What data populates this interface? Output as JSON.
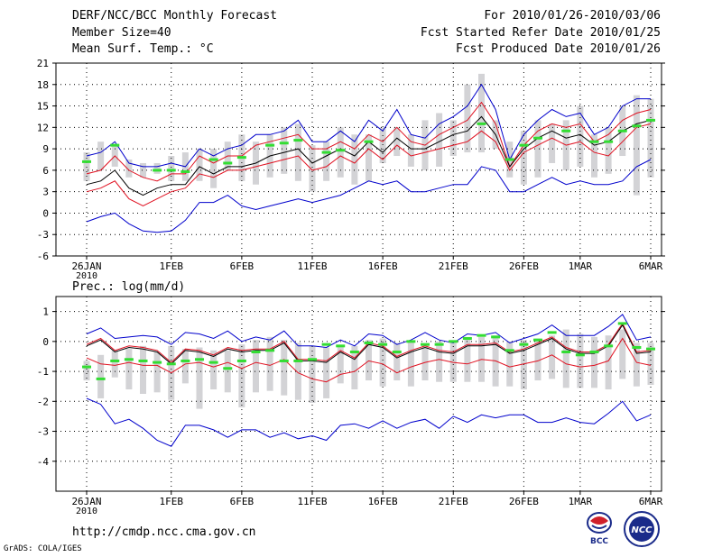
{
  "header": {
    "line1_left": "DERF/NCC/BCC Monthly Forecast",
    "line2_left": "Member Size=40",
    "line3_left": "Mean Surf. Temp.: °C",
    "line1_right": "For 2010/01/26-2010/03/06",
    "line2_right": "Fcst Started Refer Date 2010/01/25",
    "line3_right": "Fcst Produced Date 2010/01/26"
  },
  "footer": {
    "url": "http://cmdp.ncc.cma.gov.cn",
    "credit": "GrADS: COLA/IGES",
    "logo_left_text": "BCC",
    "logo_right_text": "NCC"
  },
  "colors": {
    "max_line": "#0000cc",
    "min_line": "#0000cc",
    "pct_line": "#e01020",
    "median_line": "#000000",
    "bar": "#d3d3d6",
    "obs_mark": "#33dd33",
    "grid": "#000000"
  },
  "chart_data": [
    {
      "type": "line",
      "title": "Mean Surf. Temp.: °C",
      "x_tick_labels": [
        "26JAN\n2010",
        "1FEB",
        "6FEB",
        "11FEB",
        "16FEB",
        "21FEB",
        "26FEB",
        "1MAR",
        "6MAR"
      ],
      "x_tick_days": [
        0,
        6,
        11,
        16,
        21,
        26,
        31,
        35,
        40
      ],
      "ylim": [
        -6,
        21
      ],
      "y_ticks": [
        -6,
        -3,
        0,
        3,
        6,
        9,
        12,
        15,
        18,
        21
      ],
      "days": 41,
      "series": [
        {
          "name": "max",
          "values": [
            8,
            8.5,
            10,
            7,
            6.5,
            6.5,
            7,
            6.5,
            9,
            8,
            9,
            9.5,
            11,
            11,
            11.5,
            13,
            10,
            10,
            11.5,
            10,
            13,
            11.5,
            14.5,
            11,
            10.5,
            12.5,
            13.5,
            15,
            18,
            14.5,
            7.5,
            11,
            13,
            14.5,
            13.5,
            14,
            11,
            12,
            15,
            16,
            16
          ]
        },
        {
          "name": "upper",
          "values": [
            5.5,
            6,
            8,
            6,
            5,
            4.5,
            5.5,
            5.5,
            8,
            7,
            8,
            8,
            9.5,
            10,
            10.5,
            11,
            9,
            9,
            10,
            9,
            11,
            10,
            12,
            10,
            9.5,
            11,
            12,
            13,
            15.5,
            12.5,
            6.5,
            9.5,
            11.5,
            12.5,
            12,
            12.5,
            10,
            11,
            13,
            14,
            14.5
          ]
        },
        {
          "name": "median",
          "values": [
            4,
            4.5,
            6,
            3.5,
            2.5,
            3.5,
            4,
            4,
            6.5,
            5.5,
            6.5,
            6.5,
            7,
            8,
            8.5,
            9,
            7,
            8,
            9,
            8,
            10,
            8.5,
            10.5,
            9,
            9,
            10,
            11,
            11.5,
            13.5,
            11,
            6.5,
            9,
            10.5,
            11.5,
            10.5,
            11,
            9.5,
            10,
            11.5,
            12.5,
            13
          ]
        },
        {
          "name": "lower",
          "values": [
            3,
            3.5,
            4.5,
            2,
            1,
            2,
            3,
            3.5,
            5.5,
            5,
            6,
            6,
            6.5,
            7,
            7.5,
            8,
            6,
            6.5,
            8,
            7,
            9,
            7.5,
            9.5,
            8,
            8.5,
            9,
            9.5,
            10,
            11.5,
            10,
            6,
            8.5,
            9.5,
            10.5,
            9.5,
            10,
            8.5,
            8,
            10,
            12,
            12.5
          ]
        },
        {
          "name": "min",
          "values": [
            -1.2,
            -0.5,
            0,
            -1.5,
            -2.5,
            -2.7,
            -2.5,
            -1,
            1.5,
            1.5,
            2.5,
            1,
            0.5,
            1,
            1.5,
            2,
            1.5,
            2,
            2.5,
            3.5,
            4.5,
            4,
            4.5,
            3,
            3,
            3.5,
            4,
            4,
            6.5,
            6,
            3,
            3,
            4,
            5,
            4,
            4.5,
            4,
            4,
            4.5,
            6.5,
            7.5
          ]
        },
        {
          "name": "bar_top",
          "values": [
            8.5,
            10,
            9.5,
            7.5,
            7,
            7,
            8,
            8.5,
            9,
            9,
            10,
            11,
            10,
            11,
            12,
            12.5,
            9.5,
            10,
            12,
            11,
            11,
            12,
            12,
            11,
            13,
            14,
            13,
            18,
            19.5,
            13,
            10,
            11.5,
            13,
            12.5,
            13,
            15,
            11,
            12,
            15,
            16.5,
            16
          ]
        },
        {
          "name": "bar_bottom",
          "values": [
            4.5,
            6,
            6.5,
            5,
            5,
            5.5,
            4.5,
            4.5,
            4.5,
            3.5,
            6,
            4.5,
            4,
            5,
            5.5,
            4.5,
            3,
            4.5,
            5,
            4,
            4.5,
            7,
            8,
            6.5,
            6,
            6.5,
            8,
            8.5,
            8.5,
            9,
            5,
            4,
            5,
            7,
            6,
            6.5,
            5,
            5.5,
            8,
            2.5,
            5
          ]
        },
        {
          "name": "obs",
          "values": [
            7.2,
            null,
            9.5,
            null,
            null,
            6,
            6,
            5.8,
            null,
            7.5,
            7,
            7.8,
            null,
            9.5,
            9.8,
            10.2,
            null,
            8.5,
            8.8,
            null,
            10,
            null,
            null,
            null,
            null,
            null,
            null,
            null,
            12.5,
            null,
            7.5,
            9.5,
            10.5,
            null,
            11.5,
            null,
            10,
            10,
            11.5,
            12.2,
            13
          ]
        }
      ]
    },
    {
      "type": "line",
      "title": "Prec.: log(mm/d)",
      "x_tick_labels": [
        "26JAN\n2010",
        "1FEB",
        "6FEB",
        "11FEB",
        "16FEB",
        "21FEB",
        "26FEB",
        "1MAR",
        "6MAR"
      ],
      "x_tick_days": [
        0,
        6,
        11,
        16,
        21,
        26,
        31,
        35,
        40
      ],
      "ylim": [
        -5,
        1.5
      ],
      "y_ticks": [
        -4,
        -3,
        -2,
        -1,
        0,
        1
      ],
      "days": 41,
      "series": [
        {
          "name": "max",
          "values": [
            0.25,
            0.45,
            0.1,
            0.15,
            0.2,
            0.15,
            -0.1,
            0.3,
            0.25,
            0.1,
            0.35,
            0,
            0.15,
            0.05,
            0.35,
            -0.15,
            -0.15,
            -0.2,
            0.05,
            -0.15,
            0.25,
            0.2,
            -0.1,
            0.05,
            0.3,
            0.05,
            -0.05,
            0.25,
            0.2,
            0.3,
            -0.05,
            0.1,
            0.25,
            0.55,
            0.2,
            0.2,
            0.2,
            0.5,
            0.9,
            0.05,
            0.15
          ]
        },
        {
          "name": "upper",
          "values": [
            -0.1,
            0.1,
            -0.3,
            -0.15,
            -0.2,
            -0.3,
            -0.7,
            -0.25,
            -0.3,
            -0.45,
            -0.2,
            -0.3,
            -0.25,
            -0.25,
            0,
            -0.6,
            -0.6,
            -0.65,
            -0.3,
            -0.55,
            -0.05,
            -0.15,
            -0.5,
            -0.3,
            -0.15,
            -0.3,
            -0.35,
            -0.1,
            -0.1,
            -0.05,
            -0.35,
            -0.25,
            -0.05,
            0.15,
            -0.2,
            -0.35,
            -0.35,
            -0.1,
            0.6,
            -0.35,
            -0.3
          ]
        },
        {
          "name": "median",
          "values": [
            -0.15,
            0.05,
            -0.35,
            -0.2,
            -0.25,
            -0.35,
            -0.75,
            -0.3,
            -0.35,
            -0.5,
            -0.25,
            -0.35,
            -0.3,
            -0.3,
            -0.05,
            -0.65,
            -0.65,
            -0.7,
            -0.35,
            -0.6,
            -0.1,
            -0.2,
            -0.55,
            -0.35,
            -0.2,
            -0.35,
            -0.4,
            -0.15,
            -0.15,
            -0.1,
            -0.4,
            -0.3,
            -0.1,
            0.1,
            -0.25,
            -0.4,
            -0.4,
            -0.15,
            0.55,
            -0.4,
            -0.35
          ]
        },
        {
          "name": "lower",
          "values": [
            -0.55,
            -0.75,
            -0.8,
            -0.7,
            -0.8,
            -0.8,
            -1.05,
            -0.75,
            -0.7,
            -0.85,
            -0.7,
            -0.9,
            -0.7,
            -0.8,
            -0.6,
            -1.05,
            -1.25,
            -1.35,
            -1.1,
            -1,
            -0.65,
            -0.75,
            -1.05,
            -0.85,
            -0.7,
            -0.6,
            -0.7,
            -0.75,
            -0.6,
            -0.65,
            -0.85,
            -0.75,
            -0.65,
            -0.45,
            -0.75,
            -0.85,
            -0.8,
            -0.65,
            0.1,
            -0.7,
            -0.8
          ]
        },
        {
          "name": "min",
          "values": [
            -1.9,
            -2.1,
            -2.75,
            -2.6,
            -2.9,
            -3.3,
            -3.5,
            -2.8,
            -2.8,
            -2.95,
            -3.2,
            -2.95,
            -2.95,
            -3.2,
            -3.05,
            -3.25,
            -3.15,
            -3.3,
            -2.8,
            -2.75,
            -2.9,
            -2.65,
            -2.9,
            -2.7,
            -2.6,
            -2.9,
            -2.5,
            -2.7,
            -2.45,
            -2.55,
            -2.45,
            -2.45,
            -2.7,
            -2.7,
            -2.55,
            -2.7,
            -2.75,
            -2.4,
            -2,
            -2.65,
            -2.45
          ]
        },
        {
          "name": "bar_top",
          "values": [
            -0.65,
            -0.45,
            -0.3,
            -0.25,
            -0.15,
            -0.35,
            -0.15,
            -0.25,
            -0.2,
            -0.3,
            -0.3,
            -0.1,
            0.05,
            0.15,
            0.05,
            -0.05,
            -0.15,
            -0.2,
            -0.15,
            -0.15,
            0.05,
            0.1,
            -0.05,
            0,
            -0.1,
            0,
            0,
            0.15,
            0.15,
            0.2,
            0,
            0.05,
            0.1,
            0.2,
            0.4,
            0.25,
            0.15,
            0.2,
            0.4,
            -0.05,
            -0.05
          ]
        },
        {
          "name": "bar_bottom",
          "values": [
            -1.3,
            -1.9,
            -1.2,
            -1.6,
            -1.75,
            -1.7,
            -1.95,
            -1.4,
            -2.25,
            -1.6,
            -1.7,
            -2.2,
            -1.7,
            -1.65,
            -1.8,
            -1.95,
            -2.05,
            -1.9,
            -1.4,
            -1.6,
            -1.3,
            -1.5,
            -1.3,
            -1.5,
            -1.3,
            -1.35,
            -1.35,
            -1.35,
            -1.35,
            -1.5,
            -1.5,
            -1.6,
            -1.3,
            -1.25,
            -1.55,
            -1.55,
            -1.55,
            -1.6,
            -1.25,
            -1.5,
            -1.45
          ]
        },
        {
          "name": "obs",
          "values": [
            -0.85,
            -1.25,
            -0.65,
            -0.6,
            -0.65,
            -0.7,
            -0.75,
            -0.65,
            -0.6,
            -0.7,
            -0.9,
            -0.65,
            -0.35,
            -0.3,
            -0.65,
            -0.65,
            -0.6,
            -0.1,
            -0.15,
            -0.35,
            -0.05,
            -0.1,
            -0.35,
            0,
            -0.1,
            -0.1,
            0,
            0.1,
            0.2,
            0.15,
            -0.3,
            -0.1,
            0.05,
            0.3,
            -0.35,
            -0.45,
            -0.35,
            -0.15,
            0.6,
            -0.2,
            -0.25
          ]
        }
      ]
    }
  ]
}
